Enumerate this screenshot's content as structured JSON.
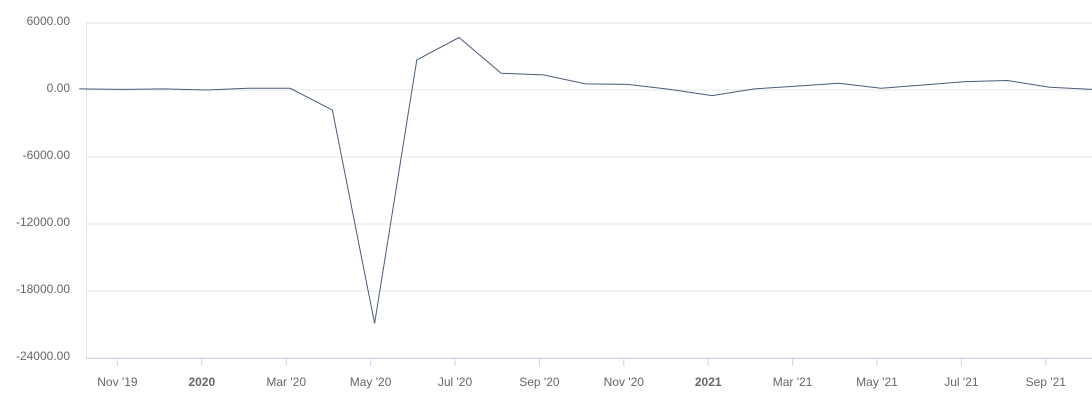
{
  "chart_data": {
    "type": "line",
    "categories": [
      null,
      "Nov '19",
      null,
      "2020",
      null,
      "Mar '20",
      null,
      "May '20",
      null,
      "Jul '20",
      null,
      "Sep '20",
      null,
      "Nov '20",
      null,
      "2021",
      null,
      "Mar '21",
      null,
      "May '21",
      null,
      "Jul '21",
      null,
      "Sep '21",
      null
    ],
    "values": [
      100,
      50,
      100,
      0,
      150,
      150,
      -1800,
      -20900,
      2700,
      4700,
      1500,
      1350,
      550,
      500,
      50,
      -500,
      100,
      350,
      600,
      150,
      450,
      750,
      850,
      250,
      50
    ],
    "color": "#4a5b78",
    "ylim": [
      -24000,
      6000
    ],
    "yticks": [
      {
        "value": -24000,
        "label": "-24000.00"
      },
      {
        "value": -18000,
        "label": "-18000.00"
      },
      {
        "value": -12000,
        "label": "-12000.00"
      },
      {
        "value": -6000,
        "label": "-6000.00"
      },
      {
        "value": 0,
        "label": "0.00"
      },
      {
        "value": 6000,
        "label": "6000.00"
      }
    ],
    "grid": true
  }
}
